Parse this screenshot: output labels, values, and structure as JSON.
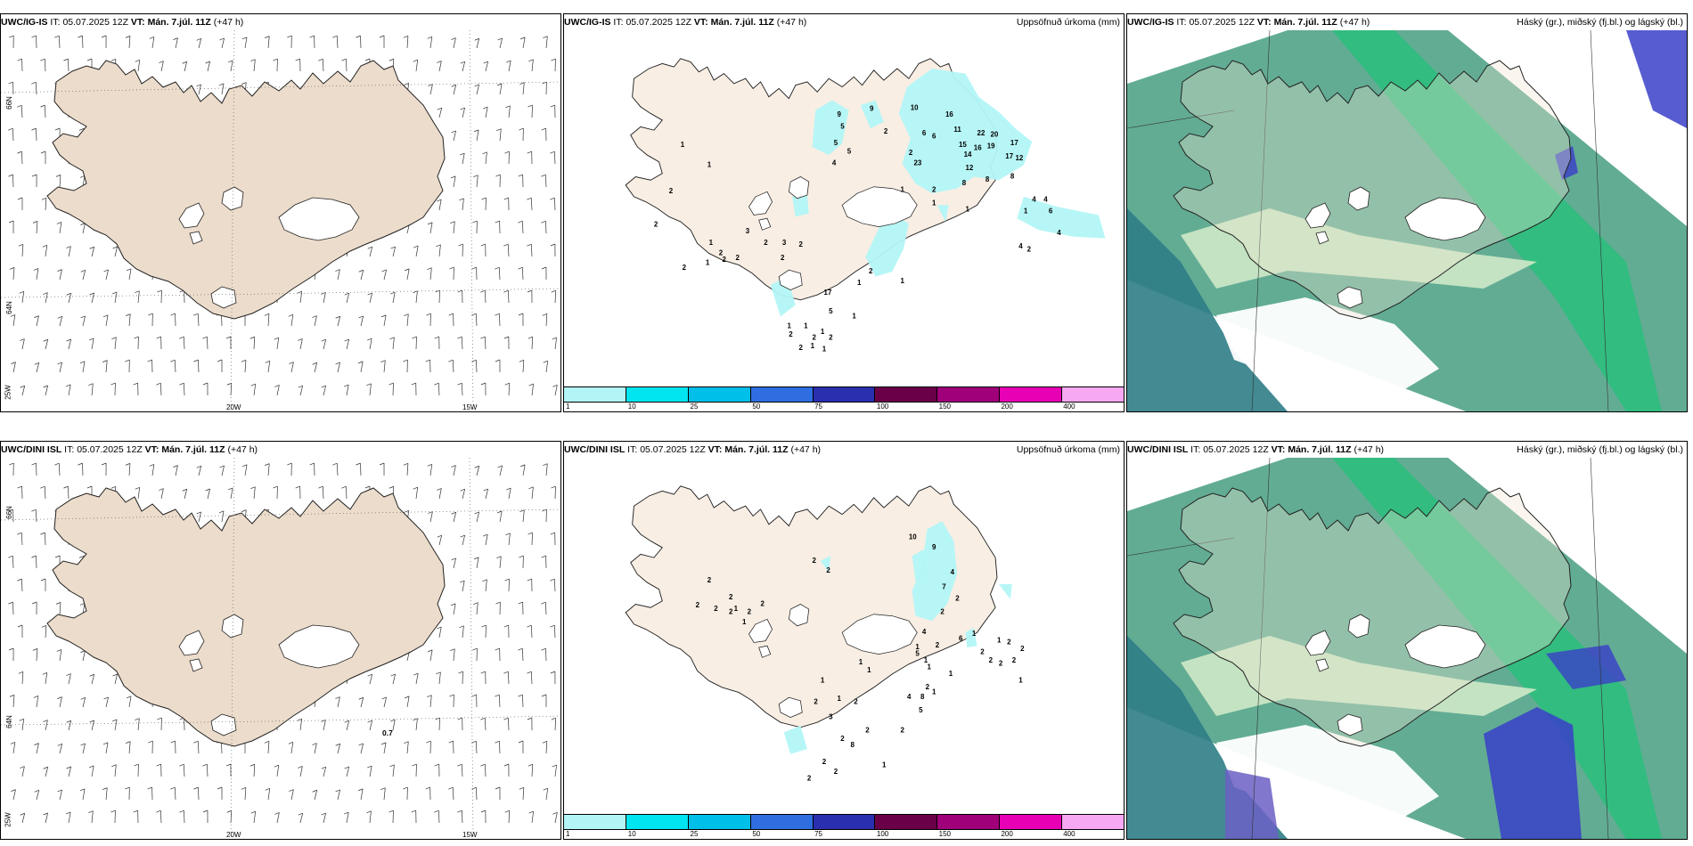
{
  "rows": [
    {
      "model": "UWC/IG-IS",
      "init_label": "IT:",
      "init_time": "05.07.2025 12Z",
      "valid_label": "VT:",
      "valid_time": "Mán. 7.júl. 11Z",
      "lead": "(+47 h)"
    },
    {
      "model": "UWC/DINI ISL",
      "init_label": "IT:",
      "init_time": "05.07.2025 12Z",
      "valid_label": "VT:",
      "valid_time": "Mán. 7.júl. 11Z",
      "lead": "(+47 h)"
    }
  ],
  "panel_titles": {
    "precip": "Uppsöfnuð úrkoma (mm)",
    "cloud": "Háský (gr.), miðský (fj.bl.) og lágský (bl.)"
  },
  "lat_labels": [
    "66N",
    "64N"
  ],
  "lon_labels": [
    "25W",
    "20W",
    "15W"
  ],
  "legend": {
    "ticks": [
      "1",
      "10",
      "25",
      "50",
      "75",
      "100",
      "150",
      "200",
      "400"
    ],
    "colors": [
      "#b3f5f7",
      "#00e5f0",
      "#00bfe8",
      "#2f6ee0",
      "#2a2fb0",
      "#6a0048",
      "#a0007a",
      "#e800b4",
      "#f6a8f2"
    ]
  },
  "wind_annotation": "0.7",
  "precip_top": [
    {
      "v": "1"
    },
    {
      "v": "1"
    },
    {
      "v": "2"
    },
    {
      "v": "9"
    },
    {
      "v": "9"
    },
    {
      "v": "5"
    },
    {
      "v": "5"
    },
    {
      "v": "5"
    },
    {
      "v": "4"
    },
    {
      "v": "2"
    },
    {
      "v": "10"
    },
    {
      "v": "16"
    },
    {
      "v": "6"
    },
    {
      "v": "6"
    },
    {
      "v": "11"
    },
    {
      "v": "22"
    },
    {
      "v": "20"
    },
    {
      "v": "17"
    },
    {
      "v": "15"
    },
    {
      "v": "16"
    },
    {
      "v": "19"
    },
    {
      "v": "14"
    },
    {
      "v": "2"
    },
    {
      "v": "23"
    },
    {
      "v": "12"
    },
    {
      "v": "17"
    },
    {
      "v": "12"
    },
    {
      "v": "8"
    },
    {
      "v": "8"
    },
    {
      "v": "8"
    },
    {
      "v": "1"
    },
    {
      "v": "2"
    },
    {
      "v": "1"
    },
    {
      "v": "1"
    },
    {
      "v": "1"
    },
    {
      "v": "4"
    },
    {
      "v": "4"
    },
    {
      "v": "6"
    },
    {
      "v": "4"
    },
    {
      "v": "4"
    },
    {
      "v": "2"
    },
    {
      "v": "2"
    },
    {
      "v": "2"
    },
    {
      "v": "1"
    },
    {
      "v": "2"
    },
    {
      "v": "1"
    },
    {
      "v": "2"
    },
    {
      "v": "2"
    },
    {
      "v": "3"
    },
    {
      "v": "2"
    },
    {
      "v": "3"
    },
    {
      "v": "2"
    },
    {
      "v": "2"
    },
    {
      "v": "17"
    },
    {
      "v": "5"
    },
    {
      "v": "1"
    },
    {
      "v": "2"
    },
    {
      "v": "1"
    },
    {
      "v": "1"
    },
    {
      "v": "1"
    },
    {
      "v": "2"
    },
    {
      "v": "1"
    },
    {
      "v": "2"
    },
    {
      "v": "2"
    },
    {
      "v": "1"
    },
    {
      "v": "1"
    },
    {
      "v": "1"
    },
    {
      "v": "2"
    }
  ],
  "precip_bottom": [
    {
      "v": "2"
    },
    {
      "v": "2"
    },
    {
      "v": "2"
    },
    {
      "v": "2"
    },
    {
      "v": "2"
    },
    {
      "v": "1"
    },
    {
      "v": "2"
    },
    {
      "v": "2"
    },
    {
      "v": "1"
    },
    {
      "v": "2"
    },
    {
      "v": "2"
    },
    {
      "v": "10"
    },
    {
      "v": "9"
    },
    {
      "v": "4"
    },
    {
      "v": "7"
    },
    {
      "v": "2"
    },
    {
      "v": "2"
    },
    {
      "v": "4"
    },
    {
      "v": "6"
    },
    {
      "v": "1"
    },
    {
      "v": "1"
    },
    {
      "v": "2"
    },
    {
      "v": "5"
    },
    {
      "v": "1"
    },
    {
      "v": "2"
    },
    {
      "v": "1"
    },
    {
      "v": "4"
    },
    {
      "v": "5"
    },
    {
      "v": "1"
    },
    {
      "v": "1"
    },
    {
      "v": "2"
    },
    {
      "v": "2"
    },
    {
      "v": "2"
    },
    {
      "v": "1"
    },
    {
      "v": "2"
    },
    {
      "v": "2"
    },
    {
      "v": "2"
    },
    {
      "v": "1"
    },
    {
      "v": "1"
    },
    {
      "v": "1"
    },
    {
      "v": "2"
    },
    {
      "v": "3"
    },
    {
      "v": "8"
    },
    {
      "v": "8"
    },
    {
      "v": "2"
    },
    {
      "v": "1"
    },
    {
      "v": "2"
    },
    {
      "v": "2"
    },
    {
      "v": "2"
    },
    {
      "v": "1"
    },
    {
      "v": "2"
    },
    {
      "v": "1"
    },
    {
      "v": "2"
    },
    {
      "v": "2"
    }
  ],
  "colors": {
    "land": "#f8eee4",
    "land_wind": "#ecdccb",
    "high_cloud": "#5aa88e",
    "mid_cloud": "#27c07a",
    "low_cloud": "#3a3fc8",
    "precip_light": "#b3f5f7"
  }
}
